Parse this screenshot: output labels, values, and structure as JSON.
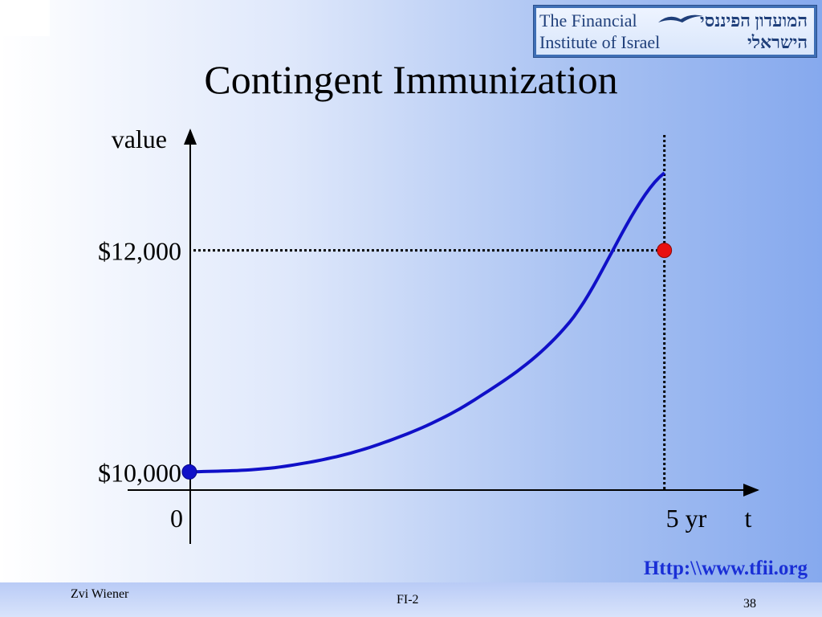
{
  "slide": {
    "title": "Contingent Immunization",
    "url": "Http:\\\\www.tfii.org",
    "footer_author": "Zvi Wiener",
    "footer_course": "FI-2",
    "page_number": "38"
  },
  "logo": {
    "english": "The Financial\nInstitute of Israel",
    "hebrew": "המועדון הפיננסי\nהישראלי"
  },
  "colors": {
    "curve": "#1010c8",
    "start_point": "#1010c8",
    "end_point": "#e81010",
    "axis": "#000000"
  },
  "chart_data": {
    "type": "line",
    "title": "",
    "ylabel": "value",
    "xlabel": "t",
    "y_ticks": [
      "$12,000",
      "$10,000"
    ],
    "x_ticks": [
      "0",
      "5 yr"
    ],
    "x": [
      0,
      1,
      2,
      3,
      4,
      5
    ],
    "series": [
      {
        "values": [
          10000,
          10050,
          10250,
          10650,
          11350,
          12700
        ]
      }
    ],
    "points": [
      {
        "x": 0,
        "y": 10000
      },
      {
        "x": 5,
        "y": 12000
      }
    ],
    "reference_lines": [
      {
        "type": "horizontal",
        "y": 12000,
        "style": "dotted"
      },
      {
        "type": "vertical",
        "x": 5,
        "style": "dotted"
      }
    ],
    "xlim": [
      -0.65,
      6
    ],
    "ylim": [
      9350,
      13100
    ]
  }
}
